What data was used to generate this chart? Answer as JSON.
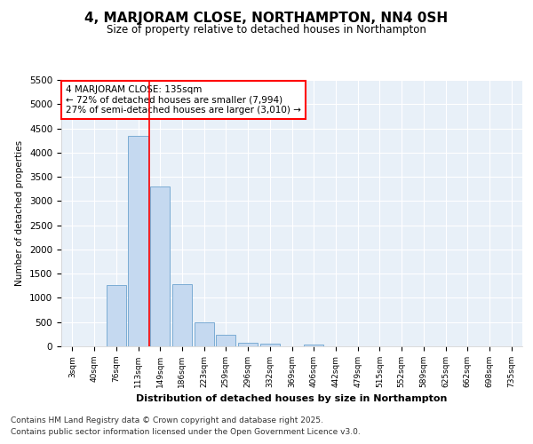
{
  "title": "4, MARJORAM CLOSE, NORTHAMPTON, NN4 0SH",
  "subtitle": "Size of property relative to detached houses in Northampton",
  "xlabel": "Distribution of detached houses by size in Northampton",
  "ylabel": "Number of detached properties",
  "categories": [
    "3sqm",
    "40sqm",
    "76sqm",
    "113sqm",
    "149sqm",
    "186sqm",
    "223sqm",
    "259sqm",
    "296sqm",
    "332sqm",
    "369sqm",
    "406sqm",
    "442sqm",
    "479sqm",
    "515sqm",
    "552sqm",
    "589sqm",
    "625sqm",
    "662sqm",
    "698sqm",
    "735sqm"
  ],
  "values": [
    0,
    0,
    1270,
    4350,
    3300,
    1280,
    500,
    230,
    80,
    50,
    0,
    30,
    0,
    0,
    0,
    0,
    0,
    0,
    0,
    0,
    0
  ],
  "bar_color": "#c5d9f0",
  "bar_edge_color": "#7bacd4",
  "red_line_x": 3.5,
  "annotation_line1": "4 MARJORAM CLOSE: 135sqm",
  "annotation_line2": "← 72% of detached houses are smaller (7,994)",
  "annotation_line3": "27% of semi-detached houses are larger (3,010) →",
  "ylim": [
    0,
    5500
  ],
  "yticks": [
    0,
    500,
    1000,
    1500,
    2000,
    2500,
    3000,
    3500,
    4000,
    4500,
    5000,
    5500
  ],
  "background_color": "#e8f0f8",
  "grid_color": "#ffffff",
  "footer_line1": "Contains HM Land Registry data © Crown copyright and database right 2025.",
  "footer_line2": "Contains public sector information licensed under the Open Government Licence v3.0."
}
